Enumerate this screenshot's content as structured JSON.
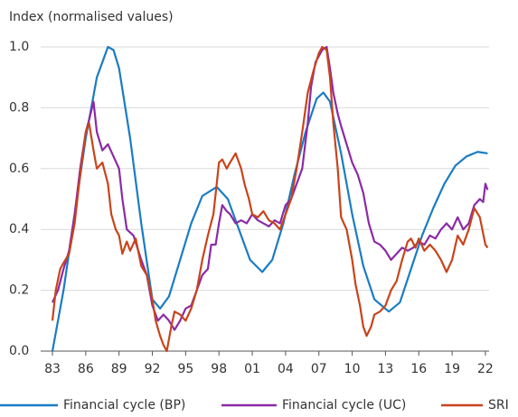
{
  "chart_data": {
    "type": "line",
    "y_label": "Index (normalised values)",
    "xlim": [
      1983,
      2022.2
    ],
    "ylim": [
      0,
      1
    ],
    "xticks": [
      {
        "value": 1983,
        "label": "83"
      },
      {
        "value": 1986,
        "label": "86"
      },
      {
        "value": 1989,
        "label": "89"
      },
      {
        "value": 1992,
        "label": "92"
      },
      {
        "value": 1995,
        "label": "95"
      },
      {
        "value": 1998,
        "label": "98"
      },
      {
        "value": 2001,
        "label": "01"
      },
      {
        "value": 2004,
        "label": "04"
      },
      {
        "value": 2007,
        "label": "07"
      },
      {
        "value": 2010,
        "label": "10"
      },
      {
        "value": 2013,
        "label": "13"
      },
      {
        "value": 2016,
        "label": "16"
      },
      {
        "value": 2019,
        "label": "19"
      },
      {
        "value": 2022,
        "label": "22"
      }
    ],
    "yticks": [
      {
        "value": 0,
        "label": "0.0"
      },
      0.2,
      0.4,
      0.6,
      0.8,
      {
        "value": 1,
        "label": "1.0"
      }
    ],
    "grid": true,
    "legend": "bottom",
    "series": [
      {
        "name": "Financial cycle (BP)",
        "color": "#1a7cc4",
        "x": [
          1983,
          1984,
          1985,
          1986,
          1987,
          1988,
          1988.5,
          1989,
          1990,
          1991,
          1992,
          1992.7,
          1993.5,
          1994.5,
          1995.5,
          1996.5,
          1997.8,
          1998.8,
          1999.8,
          2000.8,
          2001.9,
          2002.8,
          2003.8,
          2004.8,
          2005.8,
          2006.8,
          2007.4,
          2008,
          2009,
          2010,
          2011,
          2012,
          2013.3,
          2014.3,
          2015.3,
          2016.3,
          2017.3,
          2018.3,
          2019.3,
          2020.3,
          2021.3,
          2022.2
        ],
        "values": [
          0,
          0.2,
          0.45,
          0.7,
          0.9,
          1.0,
          0.99,
          0.93,
          0.7,
          0.42,
          0.17,
          0.14,
          0.18,
          0.3,
          0.42,
          0.51,
          0.54,
          0.5,
          0.4,
          0.3,
          0.26,
          0.3,
          0.42,
          0.58,
          0.72,
          0.83,
          0.85,
          0.82,
          0.65,
          0.45,
          0.28,
          0.17,
          0.13,
          0.16,
          0.27,
          0.38,
          0.47,
          0.55,
          0.61,
          0.64,
          0.655,
          0.65
        ]
      },
      {
        "name": "Financial cycle (UC)",
        "color": "#8b2aa6",
        "x": [
          1983,
          1983.5,
          1984,
          1984.5,
          1985,
          1985.5,
          1986,
          1986.3,
          1986.7,
          1987,
          1987.5,
          1988,
          1988.5,
          1989,
          1989.3,
          1989.7,
          1990.3,
          1991,
          1991.5,
          1992,
          1992.5,
          1993,
          1993.5,
          1994,
          1994.5,
          1995,
          1995.5,
          1996,
          1996.5,
          1997,
          1997.3,
          1997.7,
          1998,
          1998.3,
          1998.7,
          1999,
          1999.5,
          2000,
          2000.5,
          2001,
          2001.5,
          2002,
          2002.5,
          2003,
          2003.5,
          2004,
          2004.5,
          2005,
          2005.5,
          2006,
          2006.3,
          2006.7,
          2007,
          2007.3,
          2007.7,
          2008,
          2008.3,
          2008.7,
          2009,
          2009.5,
          2010,
          2010.5,
          2011,
          2011.5,
          2012,
          2012.5,
          2013,
          2013.5,
          2014,
          2014.5,
          2015,
          2015.5,
          2016,
          2016.5,
          2017,
          2017.5,
          2018,
          2018.5,
          2019,
          2019.5,
          2020,
          2020.5,
          2021,
          2021.5,
          2021.8,
          2022,
          2022.2
        ],
        "values": [
          0.16,
          0.2,
          0.27,
          0.33,
          0.45,
          0.6,
          0.72,
          0.76,
          0.82,
          0.72,
          0.66,
          0.68,
          0.64,
          0.6,
          0.5,
          0.4,
          0.38,
          0.3,
          0.25,
          0.15,
          0.1,
          0.12,
          0.1,
          0.07,
          0.1,
          0.14,
          0.15,
          0.2,
          0.25,
          0.27,
          0.35,
          0.35,
          0.42,
          0.48,
          0.46,
          0.45,
          0.42,
          0.43,
          0.42,
          0.45,
          0.43,
          0.42,
          0.41,
          0.43,
          0.42,
          0.48,
          0.5,
          0.55,
          0.6,
          0.75,
          0.87,
          0.95,
          0.97,
          0.99,
          1.0,
          0.93,
          0.85,
          0.78,
          0.74,
          0.68,
          0.62,
          0.58,
          0.52,
          0.42,
          0.36,
          0.35,
          0.33,
          0.3,
          0.32,
          0.34,
          0.33,
          0.34,
          0.36,
          0.35,
          0.38,
          0.37,
          0.4,
          0.42,
          0.4,
          0.44,
          0.4,
          0.42,
          0.48,
          0.5,
          0.49,
          0.55,
          0.53
        ]
      },
      {
        "name": "SRI",
        "color": "#c8441b",
        "x": [
          1983,
          1983.3,
          1983.7,
          1984,
          1984.5,
          1985,
          1985.5,
          1986,
          1986.3,
          1986.7,
          1987,
          1987.5,
          1988,
          1988.3,
          1988.7,
          1989,
          1989.3,
          1989.7,
          1990,
          1990.5,
          1991,
          1991.5,
          1992,
          1992.3,
          1992.7,
          1993,
          1993.3,
          1993.7,
          1994,
          1994.5,
          1995,
          1995.5,
          1996,
          1996.5,
          1997,
          1997.5,
          1997.8,
          1998,
          1998.3,
          1998.7,
          1999,
          1999.5,
          2000,
          2000.3,
          2000.7,
          2001,
          2001.5,
          2002,
          2002.5,
          2003,
          2003.5,
          2004,
          2004.5,
          2005,
          2005.5,
          2006,
          2006.5,
          2007,
          2007.3,
          2007.7,
          2008,
          2008.3,
          2008.7,
          2009,
          2009.5,
          2010,
          2010.3,
          2010.7,
          2011,
          2011.3,
          2011.7,
          2012,
          2012.5,
          2013,
          2013.5,
          2014,
          2014.5,
          2015,
          2015.3,
          2015.7,
          2016,
          2016.5,
          2017,
          2017.5,
          2018,
          2018.5,
          2019,
          2019.5,
          2020,
          2020.5,
          2021,
          2021.5,
          2022,
          2022.2
        ],
        "values": [
          0.1,
          0.2,
          0.27,
          0.29,
          0.32,
          0.42,
          0.58,
          0.72,
          0.75,
          0.66,
          0.6,
          0.62,
          0.55,
          0.45,
          0.4,
          0.38,
          0.32,
          0.36,
          0.33,
          0.37,
          0.28,
          0.25,
          0.17,
          0.1,
          0.05,
          0.02,
          0.0,
          0.08,
          0.13,
          0.12,
          0.1,
          0.14,
          0.2,
          0.3,
          0.38,
          0.45,
          0.55,
          0.62,
          0.63,
          0.6,
          0.62,
          0.65,
          0.6,
          0.55,
          0.5,
          0.45,
          0.44,
          0.46,
          0.43,
          0.42,
          0.4,
          0.45,
          0.5,
          0.6,
          0.72,
          0.85,
          0.92,
          0.98,
          1.0,
          0.99,
          0.9,
          0.75,
          0.6,
          0.44,
          0.4,
          0.3,
          0.22,
          0.15,
          0.08,
          0.05,
          0.08,
          0.12,
          0.13,
          0.15,
          0.2,
          0.23,
          0.3,
          0.36,
          0.37,
          0.34,
          0.37,
          0.33,
          0.35,
          0.33,
          0.3,
          0.26,
          0.3,
          0.38,
          0.35,
          0.4,
          0.47,
          0.44,
          0.35,
          0.34
        ]
      }
    ]
  }
}
